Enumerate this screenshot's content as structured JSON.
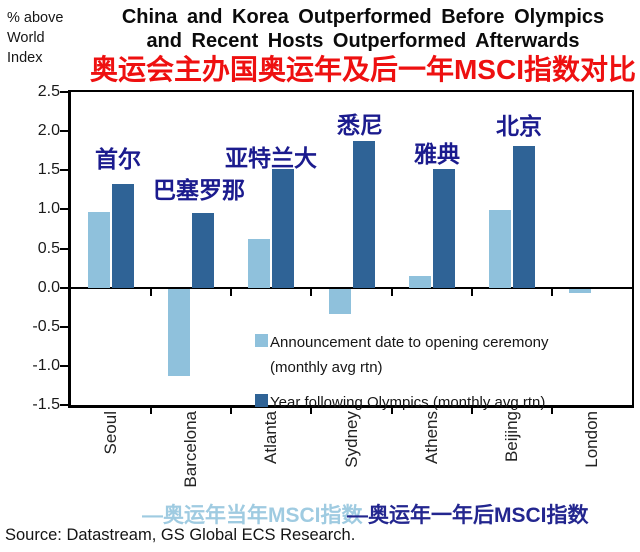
{
  "y_axis_unit": "% above\nWorld\nIndex",
  "title": {
    "line1": "China and Korea Outperformed Before Olympics",
    "line2": "and Recent Hosts Outperformed Afterwards",
    "subtitle_cn": "奥运会主办国奥运年及后一年MSCI指数对比",
    "subtitle_color": "#ee1010"
  },
  "chart_data": {
    "type": "bar",
    "title": "China and Korea Outperformed Before Olympics and Recent Hosts Outperformed Afterwards",
    "xlabel": "",
    "ylabel": "% above World Index",
    "categories": [
      "Seoul",
      "Barcelona",
      "Atlanta",
      "Sydney",
      "Athens",
      "Beijing",
      "London"
    ],
    "series": [
      {
        "name": "Announcement date to opening ceremony (monthly avg rtn)",
        "values": [
          0.97,
          -1.12,
          0.62,
          -0.33,
          0.15,
          0.99,
          -0.06
        ],
        "color": "#8fc1dc"
      },
      {
        "name": "Year following Olympics (monthly avg rtn)",
        "values": [
          1.32,
          0.95,
          1.51,
          1.87,
          1.52,
          1.81,
          null
        ],
        "color": "#2f6396"
      }
    ],
    "ylim": [
      -1.5,
      2.5
    ],
    "y_ticks": [
      "2.5",
      "2.0",
      "1.5",
      "1.0",
      "0.5",
      "0.0",
      "-0.5",
      "-1.0",
      "-1.5"
    ],
    "grid": false,
    "legend_position": "inside bottom-right",
    "legend": {
      "item1_line1": "Announcement date to opening ceremony",
      "item1_line2": "(monthly avg rtn)",
      "item2": "Year following Olympics (monthly avg rtn)"
    },
    "annotation_color": "#1b1b8e",
    "annotations": [
      {
        "city": "Seoul",
        "label": "首尔"
      },
      {
        "city": "Barcelona",
        "label": "巴塞罗那"
      },
      {
        "city": "Atlanta",
        "label": "亚特兰大"
      },
      {
        "city": "Sydney",
        "label": "悉尼"
      },
      {
        "city": "Athens",
        "label": "雅典"
      },
      {
        "city": "Beijing",
        "label": "北京"
      }
    ]
  },
  "footer": {
    "caption_before": "—奥运年当年MSCI指数",
    "caption_before_color": "#9fcbe1",
    "caption_after": "—奥运年一年后MSCI指数",
    "caption_after_color": "#23268f",
    "source": "Source: Datastream, GS Global ECS Research."
  }
}
